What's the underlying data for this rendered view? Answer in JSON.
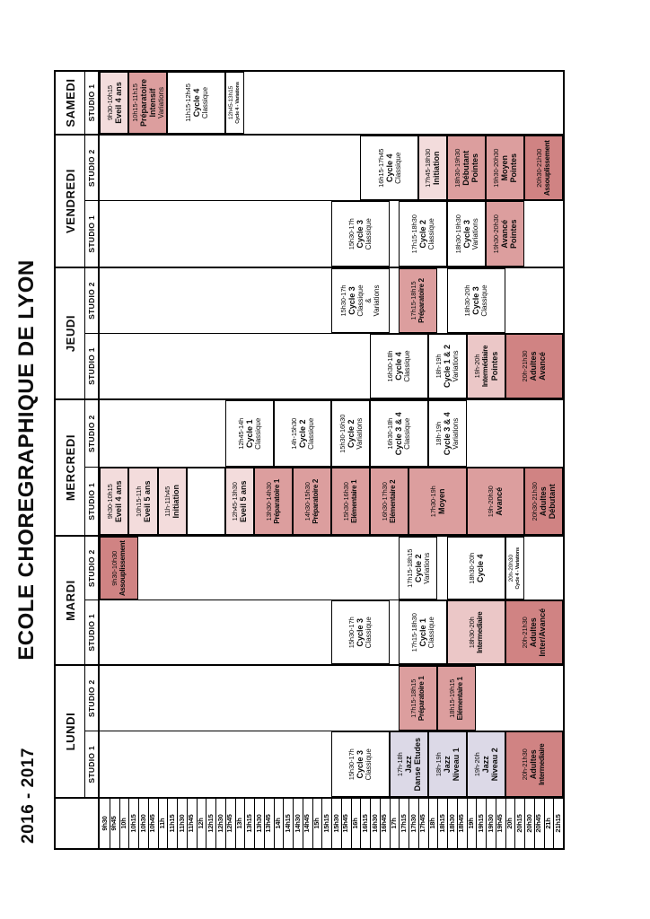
{
  "title": "ECOLE CHOREGRAPHIQUE DE LYON",
  "year": "2016 - 2017",
  "colors": {
    "white": "#ffffff",
    "light": "#f3dcdc",
    "midlight": "#ebc7c7",
    "mid": "#dc9e9e",
    "dark": "#d08383",
    "jazz": "#dcd9e7",
    "border": "#000000"
  },
  "time_labels": [
    "9h30",
    "9h45",
    "10h",
    "10h15",
    "10h30",
    "10h45",
    "11h",
    "11h15",
    "11h30",
    "11h45",
    "12h",
    "12h15",
    "12h30",
    "12h45",
    "13h",
    "13h15",
    "13h30",
    "13h45",
    "14h",
    "14h15",
    "14h30",
    "14h45",
    "15h",
    "15h15",
    "15h30",
    "15h45",
    "16h",
    "16h15",
    "16h30",
    "16h45",
    "17h",
    "17h15",
    "17h30",
    "17h45",
    "18h",
    "18h15",
    "18h30",
    "18h45",
    "19h",
    "19h15",
    "19h30",
    "19h45",
    "20h",
    "20h15",
    "20h30",
    "20h45",
    "21h",
    "21h15"
  ],
  "days": [
    {
      "name": "LUNDI",
      "studios": [
        {
          "label": "STUDIO 1",
          "blocks": [
            {
              "time": "15h30-17h",
              "from": "15h30",
              "to": "17h",
              "name": [
                "Cycle 3"
              ],
              "sub": [
                "Classique"
              ],
              "color": "white"
            },
            {
              "time": "17h-18h",
              "from": "17h",
              "to": "18h",
              "name": [
                "Jazz",
                "Danse Etudes"
              ],
              "sub": [],
              "color": "jazz"
            },
            {
              "time": "18h-19h",
              "from": "18h",
              "to": "19h",
              "name": [
                "Jazz",
                "Niveau 1"
              ],
              "sub": [],
              "color": "jazz"
            },
            {
              "time": "19h-20h",
              "from": "19h",
              "to": "20h",
              "name": [
                "Jazz",
                "Niveau 2"
              ],
              "sub": [],
              "color": "jazz"
            },
            {
              "time": "20h-21h30",
              "from": "20h",
              "to": "21h30",
              "name": [
                "Adultes",
                "Intermediaire"
              ],
              "sub": [],
              "color": "dark"
            }
          ]
        },
        {
          "label": "STUDIO 2",
          "blocks": [
            {
              "time": "17h15-18h15",
              "from": "17h15",
              "to": "18h15",
              "name": [
                "Préparatoire 1"
              ],
              "sub": [],
              "color": "mid"
            },
            {
              "time": "18h15-19h15",
              "from": "18h15",
              "to": "19h15",
              "name": [
                "Elémentaire 1"
              ],
              "sub": [],
              "color": "mid"
            }
          ]
        }
      ]
    },
    {
      "name": "MARDI",
      "studios": [
        {
          "label": "STUDIO 1",
          "blocks": [
            {
              "time": "15h30-17h",
              "from": "15h30",
              "to": "17h",
              "name": [
                "Cycle 3"
              ],
              "sub": [
                "Classique"
              ],
              "color": "white"
            },
            {
              "time": "17h15-18h30",
              "from": "17h15",
              "to": "18h30",
              "name": [
                "Cycle 1"
              ],
              "sub": [
                "Classique"
              ],
              "color": "white"
            },
            {
              "time": "18h30-20h",
              "from": "18h30",
              "to": "20h",
              "name": [
                "Intermediaire"
              ],
              "sub": [],
              "color": "midlight"
            },
            {
              "time": "20h-21h30",
              "from": "20h",
              "to": "21h30",
              "name": [
                "Adultes",
                "Inter/Avancé"
              ],
              "sub": [],
              "color": "dark"
            }
          ]
        },
        {
          "label": "STUDIO 2",
          "blocks": [
            {
              "time": "9h30-10h30",
              "from": "9h30",
              "to": "10h30",
              "name": [
                "Assouplissement"
              ],
              "sub": [],
              "color": "dark"
            },
            {
              "time": "17h15-18h15",
              "from": "17h15",
              "to": "18h15",
              "name": [
                "Cycle 2"
              ],
              "sub": [
                "Variations"
              ],
              "color": "white"
            },
            {
              "time": "18h30-20h",
              "from": "18h30",
              "to": "20h",
              "name": [
                "Cycle 4"
              ],
              "sub": [],
              "color": "white"
            },
            {
              "time": "20h-20h30",
              "from": "20h",
              "to": "20h30",
              "name": [
                "Cycle 4 - Variations"
              ],
              "sub": [],
              "color": "white",
              "tiny": true
            }
          ]
        }
      ]
    },
    {
      "name": "MERCREDI",
      "studios": [
        {
          "label": "STUDIO 1",
          "blocks": [
            {
              "time": "9h30-10h15",
              "from": "9h30",
              "to": "10h15",
              "name": [
                "Eveil 4 ans"
              ],
              "sub": [],
              "color": "light"
            },
            {
              "time": "10h15-11h",
              "from": "10h15",
              "to": "11h",
              "name": [
                "Eveil 5 ans"
              ],
              "sub": [],
              "color": "light"
            },
            {
              "time": "11h-11h45",
              "from": "11h",
              "to": "11h45",
              "name": [
                "Initiation"
              ],
              "sub": [],
              "color": "light"
            },
            {
              "time": "",
              "from": "11h45",
              "to": "12h45",
              "name": [],
              "sub": [],
              "color": "white",
              "empty": true
            },
            {
              "time": "12h45-13h30",
              "from": "12h45",
              "to": "13h30",
              "name": [
                "Eveil 5 ans"
              ],
              "sub": [],
              "color": "light"
            },
            {
              "time": "13h30-14h30",
              "from": "13h30",
              "to": "14h30",
              "name": [
                "Préparatoire 1"
              ],
              "sub": [],
              "color": "mid"
            },
            {
              "time": "14h30-15h30",
              "from": "14h30",
              "to": "15h30",
              "name": [
                "Préparatoire 2"
              ],
              "sub": [],
              "color": "mid"
            },
            {
              "time": "15h30-16h30",
              "from": "15h30",
              "to": "16h30",
              "name": [
                "Elémentaire 1"
              ],
              "sub": [],
              "color": "mid"
            },
            {
              "time": "16h30-17h30",
              "from": "16h30",
              "to": "17h30",
              "name": [
                "Elémentaire 2"
              ],
              "sub": [],
              "color": "mid"
            },
            {
              "time": "17h30-19h",
              "from": "17h30",
              "to": "19h",
              "name": [
                "Moyen"
              ],
              "sub": [],
              "color": "mid"
            },
            {
              "time": "19h-20h30",
              "from": "19h",
              "to": "20h30",
              "name": [
                "Avancé"
              ],
              "sub": [],
              "color": "mid"
            },
            {
              "time": "20h30-21h30",
              "from": "20h30",
              "to": "21h30",
              "name": [
                "Adultes",
                "Débutant"
              ],
              "sub": [],
              "color": "dark"
            }
          ]
        },
        {
          "label": "STUDIO 2",
          "blocks": [
            {
              "time": "12h45-14h",
              "from": "12h45",
              "to": "14h",
              "name": [
                "Cycle 1"
              ],
              "sub": [
                "Classique"
              ],
              "color": "white"
            },
            {
              "time": "14h-15h30",
              "from": "14h",
              "to": "15h30",
              "name": [
                "Cycle 2"
              ],
              "sub": [
                "Classique"
              ],
              "color": "white"
            },
            {
              "time": "15h30-16h30",
              "from": "15h30",
              "to": "16h30",
              "name": [
                "Cycle 2"
              ],
              "sub": [
                "Variations"
              ],
              "color": "white"
            },
            {
              "time": "16h30-18h",
              "from": "16h30",
              "to": "18h",
              "name": [
                "Cycle 3 & 4"
              ],
              "sub": [
                "Classique"
              ],
              "color": "white"
            },
            {
              "time": "18h-19h",
              "from": "18h",
              "to": "19h",
              "name": [
                "Cycle 3 & 4"
              ],
              "sub": [
                "Variations"
              ],
              "color": "white"
            }
          ]
        }
      ]
    },
    {
      "name": "JEUDI",
      "studios": [
        {
          "label": "STUDIO 1",
          "blocks": [
            {
              "time": "16h30-18h",
              "from": "16h30",
              "to": "18h",
              "name": [
                "Cycle 4"
              ],
              "sub": [
                "Classique"
              ],
              "color": "white"
            },
            {
              "time": "18h-19h",
              "from": "18h",
              "to": "19h",
              "name": [
                "Cycle 1 & 2"
              ],
              "sub": [
                "Variations"
              ],
              "color": "white"
            },
            {
              "time": "19h-20h",
              "from": "19h",
              "to": "20h",
              "name": [
                "Intermédiaire",
                "Pointes"
              ],
              "sub": [],
              "color": "midlight"
            },
            {
              "time": "20h-21h30",
              "from": "20h",
              "to": "21h30",
              "name": [
                "Adultes",
                "Avancé"
              ],
              "sub": [],
              "color": "dark"
            }
          ]
        },
        {
          "label": "STUDIO 2",
          "blocks": [
            {
              "time": "15h30-17h",
              "from": "15h30",
              "to": "17h",
              "name": [
                "Cycle 3"
              ],
              "sub": [
                "Classique",
                "&",
                "Variations"
              ],
              "color": "white"
            },
            {
              "time": "17h15-18h15",
              "from": "17h15",
              "to": "18h15",
              "name": [
                "Préparatoire 2"
              ],
              "sub": [],
              "color": "mid"
            },
            {
              "time": "18h30-20h",
              "from": "18h30",
              "to": "20h",
              "name": [
                "Cycle 3"
              ],
              "sub": [
                "Classique"
              ],
              "color": "white"
            }
          ]
        }
      ]
    },
    {
      "name": "VENDREDI",
      "studios": [
        {
          "label": "STUDIO 1",
          "blocks": [
            {
              "time": "15h30-17h",
              "from": "15h30",
              "to": "17h",
              "name": [
                "Cycle 3"
              ],
              "sub": [
                "Classique"
              ],
              "color": "white"
            },
            {
              "time": "17h15-18h30",
              "from": "17h15",
              "to": "18h30",
              "name": [
                "Cycle 2"
              ],
              "sub": [
                "Classique"
              ],
              "color": "white"
            },
            {
              "time": "18h30-19h30",
              "from": "18h30",
              "to": "19h30",
              "name": [
                "Cycle 3"
              ],
              "sub": [
                "Variations"
              ],
              "color": "white"
            },
            {
              "time": "19h30-20h30",
              "from": "19h30",
              "to": "20h30",
              "name": [
                "Avancé",
                "Pointes"
              ],
              "sub": [],
              "color": "mid"
            }
          ]
        },
        {
          "label": "STUDIO 2",
          "blocks": [
            {
              "time": "16h15-17h45",
              "from": "16h15",
              "to": "17h45",
              "name": [
                "Cycle 4"
              ],
              "sub": [
                "Classique"
              ],
              "color": "white"
            },
            {
              "time": "17h45-18h30",
              "from": "17h45",
              "to": "18h30",
              "name": [
                "Initiation"
              ],
              "sub": [],
              "color": "light"
            },
            {
              "time": "18h30-19h30",
              "from": "18h30",
              "to": "19h30",
              "name": [
                "Débutant",
                "Pointes"
              ],
              "sub": [],
              "color": "mid"
            },
            {
              "time": "19h30-20h30",
              "from": "19h30",
              "to": "20h30",
              "name": [
                "Moyen",
                "Pointes"
              ],
              "sub": [],
              "color": "mid"
            },
            {
              "time": "20h30-21h30",
              "from": "20h30",
              "to": "21h30",
              "name": [
                "Assouplissement"
              ],
              "sub": [],
              "color": "dark"
            }
          ]
        }
      ]
    },
    {
      "name": "SAMEDI",
      "studios": [
        {
          "label": "STUDIO 1",
          "blocks": [
            {
              "time": "9h30-10h15",
              "from": "9h30",
              "to": "10h15",
              "name": [
                "Eveil 4 ans"
              ],
              "sub": [],
              "color": "light"
            },
            {
              "time": "10h15-11h15",
              "from": "10h15",
              "to": "11h15",
              "name": [
                "Préparatoire",
                "Intensif"
              ],
              "sub": [
                "Variations"
              ],
              "color": "mid"
            },
            {
              "time": "11h15-12h45",
              "from": "11h15",
              "to": "12h45",
              "name": [
                "Cycle 4"
              ],
              "sub": [
                "Classique"
              ],
              "color": "white"
            },
            {
              "time": "12h45-13h15",
              "from": "12h45",
              "to": "13h15",
              "name": [
                "Cycle 4 - Variations"
              ],
              "sub": [],
              "color": "white",
              "tiny": true
            }
          ]
        }
      ]
    }
  ]
}
